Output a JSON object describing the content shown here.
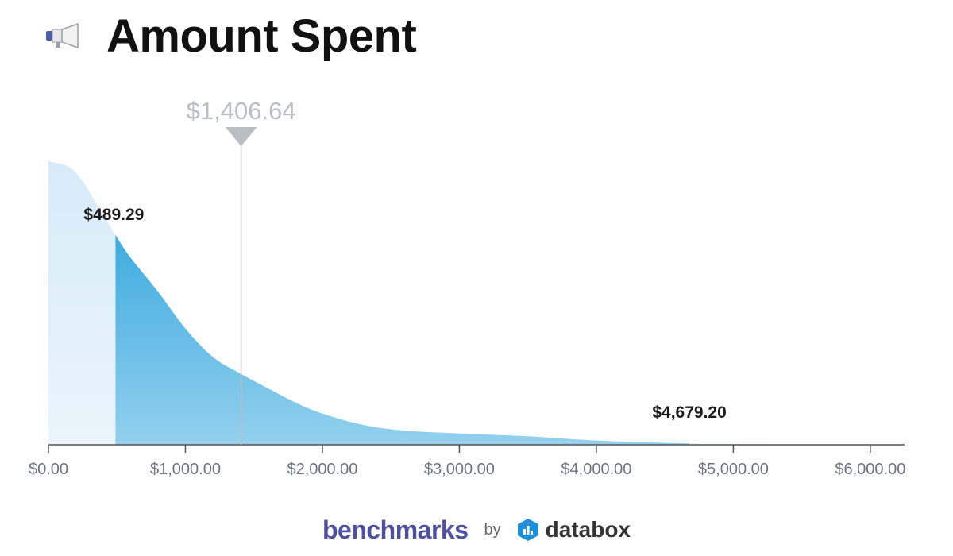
{
  "header": {
    "title": "Amount Spent",
    "icon": "megaphone-icon"
  },
  "chart_data": {
    "type": "area",
    "title": "Amount Spent",
    "xlabel": "",
    "ylabel": "",
    "xlim": [
      0,
      6250
    ],
    "x_ticks": [
      0,
      1000,
      2000,
      3000,
      4000,
      5000,
      6000
    ],
    "x_tick_labels": [
      "$0.00",
      "$1,000.00",
      "$2,000.00",
      "$3,000.00",
      "$4,000.00",
      "$5,000.00",
      "$6,000.00"
    ],
    "curve": {
      "x": [
        0,
        150,
        250,
        350,
        489.29,
        600,
        800,
        1000,
        1200,
        1406.64,
        1600,
        1800,
        2000,
        2300,
        2600,
        3000,
        3500,
        4000,
        4679.2,
        5000,
        5500,
        6000,
        6250
      ],
      "y": [
        1.0,
        0.98,
        0.93,
        0.85,
        0.74,
        0.66,
        0.54,
        0.41,
        0.31,
        0.25,
        0.2,
        0.15,
        0.11,
        0.07,
        0.05,
        0.04,
        0.03,
        0.015,
        0.005,
        0.004,
        0.003,
        0.002,
        0.002
      ]
    },
    "median": {
      "value": 1406.64,
      "label": "$1,406.64"
    },
    "range_low": {
      "value": 489.29,
      "label": "$489.29"
    },
    "range_high": {
      "value": 4679.2,
      "label": "$4,679.20"
    },
    "colors": {
      "tail": "#e3f1fa",
      "band_top": "#229fda",
      "band_bottom": "#93d0ee",
      "marker": "#b9bec4",
      "axis": "#555555",
      "tick_label": "#6b7480"
    }
  },
  "footer": {
    "brand": "benchmarks",
    "by": "by",
    "partner": "databox"
  }
}
